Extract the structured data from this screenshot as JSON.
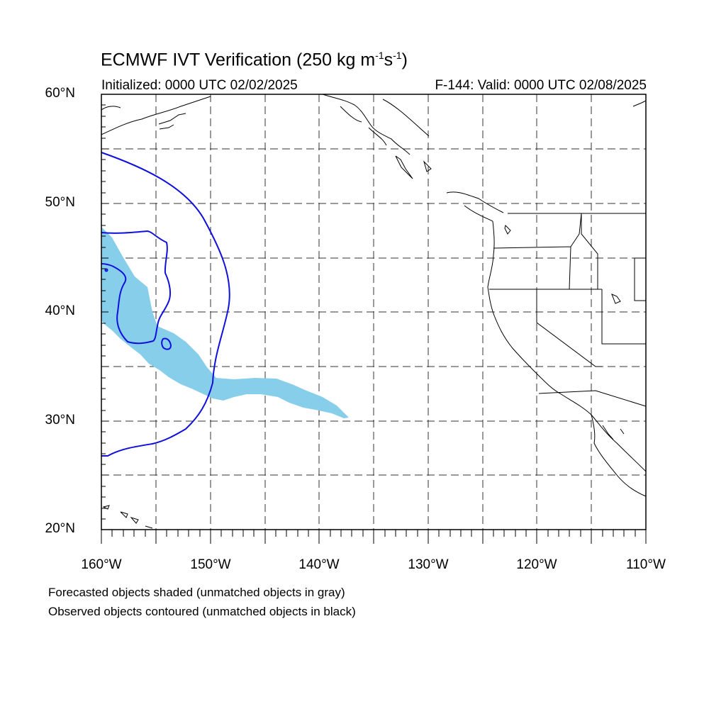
{
  "title": {
    "main": "ECMWF IVT Verification (250 kg m",
    "exp1": "-1",
    "mid": "s",
    "exp2": "-1",
    "end": ")"
  },
  "subtitle_left": "Initialized: 0000 UTC 02/02/2025",
  "subtitle_right": "F-144: Valid: 0000 UTC 02/08/2025",
  "lat_labels": [
    "60°N",
    "50°N",
    "40°N",
    "30°N",
    "20°N"
  ],
  "lon_labels": [
    "160°W",
    "150°W",
    "140°W",
    "130°W",
    "120°W",
    "110°W"
  ],
  "notes": [
    "Forecasted objects shaded (unmatched objects in gray)",
    "Observed objects contoured (unmatched objects in black)"
  ],
  "map": {
    "lon_range": [
      -160,
      -110
    ],
    "lat_range": [
      20,
      60
    ],
    "gridlines": "dashed every 5 degrees",
    "colors": {
      "forecast_fill": "#87ceeb",
      "observed_contour": "#1010dd",
      "coastline": "#000000"
    }
  }
}
